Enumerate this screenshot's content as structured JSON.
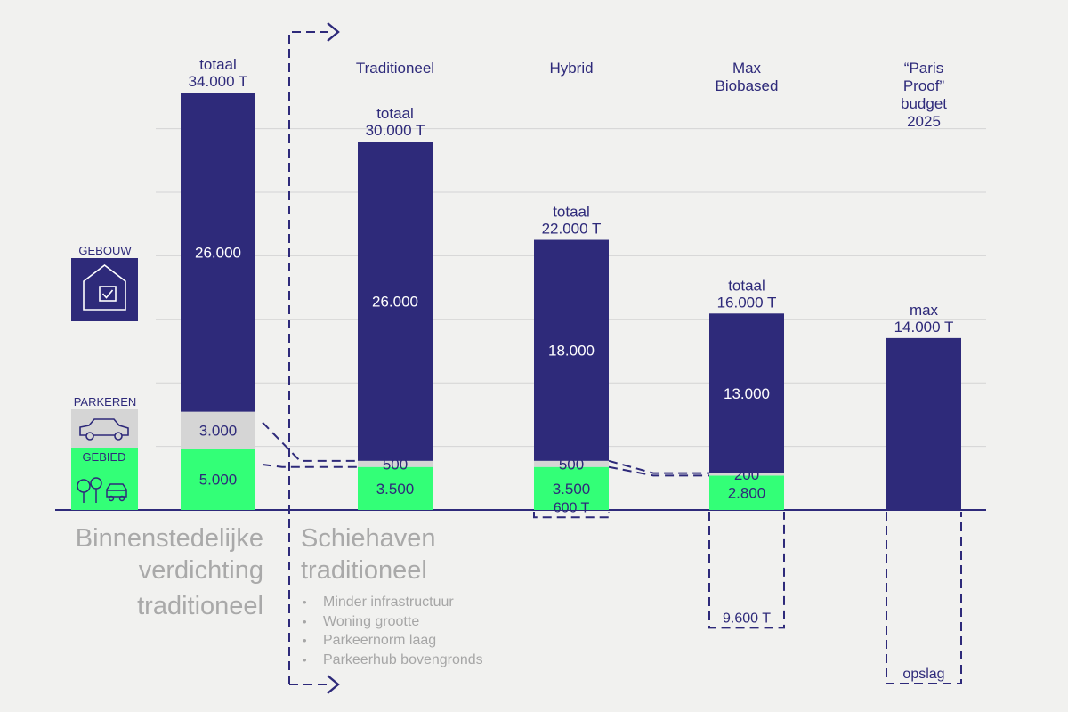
{
  "chart_data": {
    "type": "bar",
    "stacked": true,
    "units": "T",
    "categories": [
      "",
      "Traditioneel",
      "Hybrid",
      "Max Biobased",
      "“Paris Proof” budget 2025"
    ],
    "category_lines": [
      [],
      [
        "Traditioneel"
      ],
      [
        "Hybrid"
      ],
      [
        "Max",
        "Biobased"
      ],
      [
        "“Paris",
        "Proof”",
        "budget",
        "2025"
      ]
    ],
    "legend": {
      "gebouw": "GEBOUW",
      "parkeren": "PARKEREN",
      "gebied": "GEBIED"
    },
    "series": [
      {
        "name": "GEBIED",
        "color": "#33ff77",
        "values": [
          5000,
          3500,
          3500,
          2800,
          0
        ]
      },
      {
        "name": "PARKEREN",
        "color": "#d5d5d5",
        "values": [
          3000,
          500,
          500,
          200,
          0
        ]
      },
      {
        "name": "GEBOUW",
        "color": "#2e2a7a",
        "values": [
          26000,
          26000,
          18000,
          13000,
          14000
        ]
      }
    ],
    "segment_labels": [
      [
        "5.000",
        "3.000",
        "26.000"
      ],
      [
        "3.500",
        "500",
        "26.000"
      ],
      [
        "3.500",
        "500",
        "18.000"
      ],
      [
        "2.800",
        "200",
        "13.000"
      ],
      [
        "",
        "",
        ""
      ]
    ],
    "totals": [
      [
        "totaal",
        "34.000 T"
      ],
      [
        "totaal",
        "30.000 T"
      ],
      [
        "totaal",
        "22.000 T"
      ],
      [
        "totaal",
        "16.000 T"
      ],
      [
        "max",
        "14.000 T"
      ]
    ],
    "storage": [
      {
        "bar": 2,
        "value": 600,
        "label": "600 T"
      },
      {
        "bar": 3,
        "value": 9600,
        "label": "9.600 T"
      },
      {
        "bar": 4,
        "value": null,
        "label": "opslag"
      }
    ],
    "ylim": [
      0,
      34000
    ],
    "grid": true,
    "scenario_labels": {
      "left": [
        "Binnenstedelijke",
        "verdichting",
        "traditioneel"
      ],
      "right": [
        "Schiehaven",
        "traditioneel"
      ]
    },
    "measures": [
      "Minder infrastructuur",
      "Woning grootte",
      "Parkeernorm laag",
      "Parkeerhub bovengronds"
    ],
    "colors": {
      "dark": "#2e2a7a",
      "green": "#33ff77",
      "grey": "#d5d5d5",
      "background": "#f1f1ef",
      "grid": "#d4d4d4"
    }
  }
}
